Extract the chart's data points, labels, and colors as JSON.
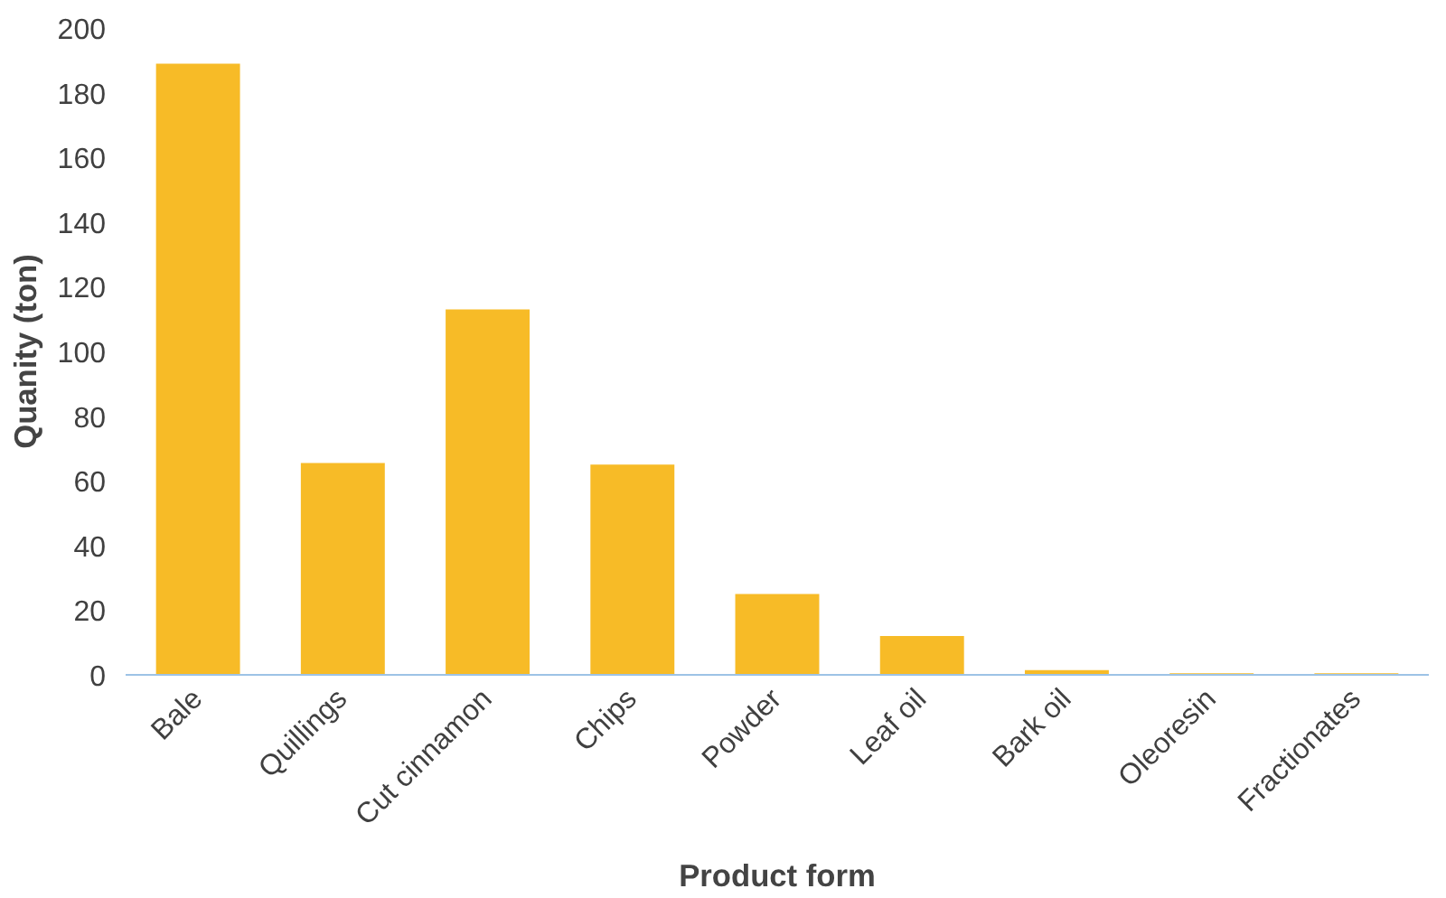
{
  "chart_data": {
    "type": "bar",
    "xlabel": "Product form",
    "ylabel": "Quanity (ton)",
    "categories": [
      "Bale",
      "Quillings",
      "Cut cinnamon",
      "Chips",
      "Powder",
      "Leaf oil",
      "Bark oil",
      "Oleoresin",
      "Fractionates"
    ],
    "values": [
      189,
      65.5,
      113,
      65,
      25,
      12,
      1.5,
      0.5,
      0.5
    ],
    "color": "#f7bb27",
    "ylim": [
      0,
      200
    ],
    "yticks": [
      0,
      20,
      40,
      60,
      80,
      100,
      120,
      140,
      160,
      180,
      200
    ],
    "grid": false
  }
}
